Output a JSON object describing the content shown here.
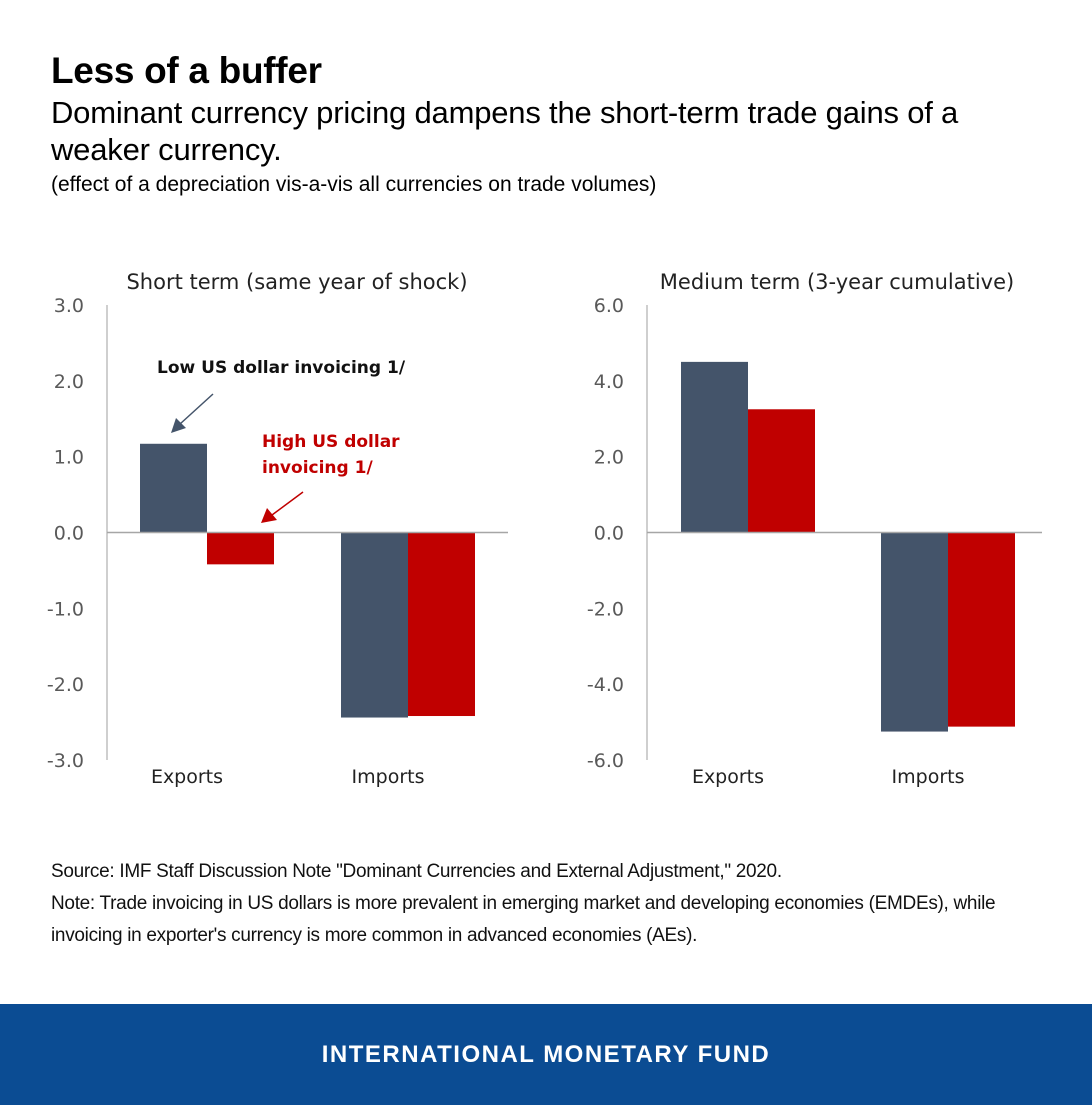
{
  "header": {
    "title": "Less of a buffer",
    "subtitle": "Dominant currency pricing dampens the short-term trade gains of a weaker currency.",
    "note": "(effect of a depreciation vis-a-vis all currencies on trade volumes)"
  },
  "chart_data": [
    {
      "type": "bar",
      "title": "Short term (same year of shock)",
      "categories": [
        "Exports",
        "Imports"
      ],
      "series": [
        {
          "name": "Low US dollar invoicing 1/",
          "values": [
            1.17,
            -2.44
          ]
        },
        {
          "name": "High US dollar invoicing 1/",
          "values": [
            -0.42,
            -2.42
          ]
        }
      ],
      "ylim": [
        -3.0,
        3.0
      ],
      "yticks": [
        "3.0",
        "2.0",
        "1.0",
        "0.0",
        "-1.0",
        "-2.0",
        "-3.0"
      ],
      "annotations": [
        "Low US dollar invoicing 1/",
        "High US dollar invoicing 1/"
      ],
      "colors": [
        "#44546a",
        "#c00000"
      ],
      "grid": false
    },
    {
      "type": "bar",
      "title": "Medium term (3-year cumulative)",
      "categories": [
        "Exports",
        "Imports"
      ],
      "series": [
        {
          "values": [
            4.5,
            -5.25
          ]
        },
        {
          "values": [
            3.25,
            -5.12
          ]
        }
      ],
      "ylim": [
        -6.0,
        6.0
      ],
      "yticks": [
        "6.0",
        "4.0",
        "2.0",
        "0.0",
        "-2.0",
        "-4.0",
        "-6.0"
      ],
      "colors": [
        "#44546a",
        "#c00000"
      ],
      "grid": false
    }
  ],
  "footnotes": {
    "source": "Source: IMF Staff Discussion Note \"Dominant Currencies and External Adjustment,\" 2020.",
    "note": "Note: Trade invoicing in US dollars is more prevalent in emerging market and developing economies (EMDEs), while invoicing in exporter's currency is more common in advanced economies (AEs)."
  },
  "footer": {
    "org": "INTERNATIONAL MONETARY FUND",
    "background": "#0b4c93"
  }
}
